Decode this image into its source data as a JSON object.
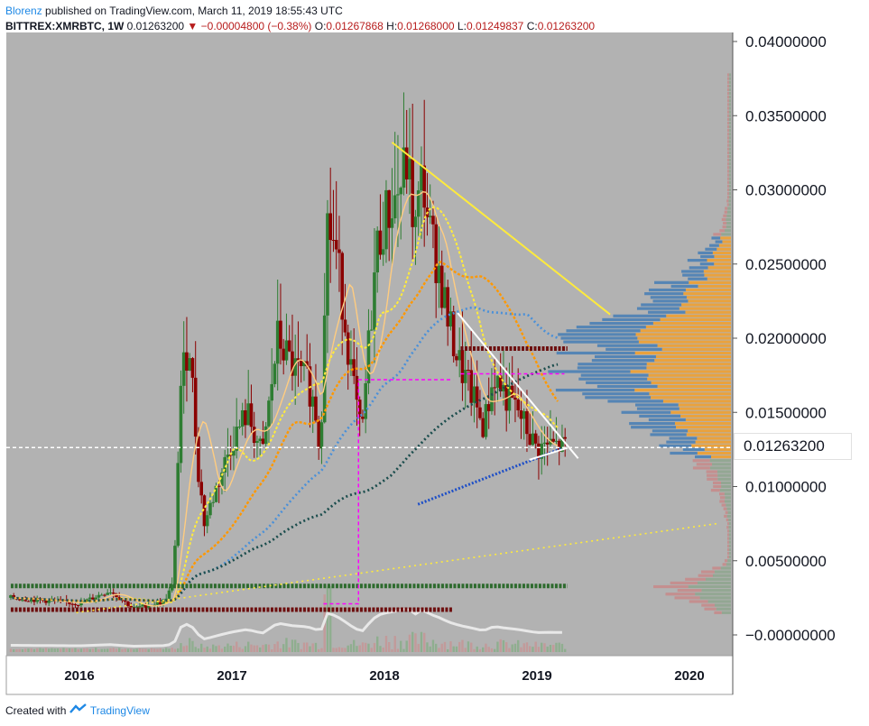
{
  "header": {
    "author": "Blorenz",
    "published_text": "published on TradingView.com, March 11, 2019 18:55:43 UTC",
    "symbol": "BITTREX:XMRBTC, 1W",
    "last": "0.01263200",
    "change": "▼ −0.00004800 (−0.38%)",
    "o_label": "O:",
    "o_value": "0.01267868",
    "h_label": "H:",
    "h_value": "0.01268000",
    "l_label": "L:",
    "l_value": "0.01249837",
    "c_label": "C:",
    "c_value": "0.01263200"
  },
  "footer": {
    "created_with": "Created with",
    "brand": "TradingView"
  },
  "colors": {
    "plot_bg": "#b2b2b2",
    "bull": "#2e7d32",
    "bear": "#8b0000",
    "yellow": "#ffeb3b",
    "orange": "#ff9800",
    "steel_blue": "#4a90d9",
    "dark_teal": "#1b4d4d",
    "royal_blue": "#1e4fc7",
    "magenta": "#ff00ff",
    "vp_blue": "#4a7fb5",
    "vp_orange": "#f0a030",
    "vp_pink": "#c58b8b",
    "vp_green": "#8fa58f"
  },
  "chart_data": {
    "type": "candlestick",
    "symbol": "BITTREX:XMRBTC",
    "interval": "1W",
    "x_ticks": [
      "2016",
      "2017",
      "2018",
      "2019",
      "2020"
    ],
    "y_ticks": [
      "0.04000000",
      "0.03500000",
      "0.03000000",
      "0.02500000",
      "0.02000000",
      "0.01500000",
      "0.01000000",
      "0.00500000",
      "−0.00000000"
    ],
    "ylim": [
      -0.0013,
      0.041
    ],
    "current_price_label": "0.01263200",
    "current_price": 0.012632,
    "price_path": [
      [
        2015.55,
        0.0025
      ],
      [
        2016.0,
        0.0021
      ],
      [
        2016.2,
        0.003
      ],
      [
        2016.35,
        0.0018
      ],
      [
        2016.55,
        0.0022
      ],
      [
        2016.62,
        0.0035
      ],
      [
        2016.66,
        0.0165
      ],
      [
        2016.72,
        0.02
      ],
      [
        2016.78,
        0.011
      ],
      [
        2016.82,
        0.0075
      ],
      [
        2016.9,
        0.01
      ],
      [
        2017.0,
        0.013
      ],
      [
        2017.1,
        0.015
      ],
      [
        2017.2,
        0.012
      ],
      [
        2017.3,
        0.02
      ],
      [
        2017.4,
        0.018
      ],
      [
        2017.5,
        0.017
      ],
      [
        2017.55,
        0.015
      ],
      [
        2017.58,
        0.012
      ],
      [
        2017.62,
        0.028
      ],
      [
        2017.68,
        0.026
      ],
      [
        2017.72,
        0.023
      ],
      [
        2017.78,
        0.018
      ],
      [
        2017.85,
        0.013
      ],
      [
        2017.9,
        0.02
      ],
      [
        2017.95,
        0.026
      ],
      [
        2018.0,
        0.028
      ],
      [
        2018.05,
        0.029
      ],
      [
        2018.1,
        0.03
      ],
      [
        2018.15,
        0.032
      ],
      [
        2018.2,
        0.027
      ],
      [
        2018.25,
        0.031
      ],
      [
        2018.3,
        0.027
      ],
      [
        2018.35,
        0.025
      ],
      [
        2018.42,
        0.021
      ],
      [
        2018.5,
        0.018
      ],
      [
        2018.58,
        0.016
      ],
      [
        2018.65,
        0.014
      ],
      [
        2018.72,
        0.0175
      ],
      [
        2018.8,
        0.016
      ],
      [
        2018.88,
        0.015
      ],
      [
        2018.95,
        0.0135
      ],
      [
        2019.0,
        0.0125
      ],
      [
        2019.08,
        0.0128
      ],
      [
        2019.19,
        0.01263
      ]
    ],
    "trendlines": [
      {
        "color": "yellow",
        "from": [
          2018.05,
          0.0332
        ],
        "to": [
          2019.48,
          0.0216
        ]
      },
      {
        "color": "white",
        "from": [
          2018.48,
          0.0217
        ],
        "to": [
          2019.27,
          0.0119
        ]
      },
      {
        "color": "white",
        "from": [
          2018.95,
          0.0118
        ],
        "to": [
          2019.2,
          0.0126
        ]
      },
      {
        "color": "yellow-dotted",
        "from": [
          2015.98,
          0.0015
        ],
        "to": [
          2020.18,
          0.0075
        ]
      }
    ],
    "horizontal_levels": [
      {
        "color": "green",
        "y": 0.0033,
        "x": [
          2015.55,
          2019.2
        ]
      },
      {
        "color": "darkred",
        "y": 0.0017,
        "x": [
          2015.55,
          2018.45
        ]
      },
      {
        "color": "darkred",
        "y": 0.0193,
        "x": [
          2018.5,
          2019.2
        ]
      }
    ],
    "magenta_box": {
      "x": [
        2017.6,
        2017.83
      ],
      "y": [
        0.0021,
        0.0172
      ]
    },
    "magenta_level": {
      "y": 0.0176,
      "x": [
        2018.5,
        2019.18
      ]
    },
    "volume_profile_range": [
      0.0015,
      0.038
    ],
    "point_of_control": 0.0183
  }
}
